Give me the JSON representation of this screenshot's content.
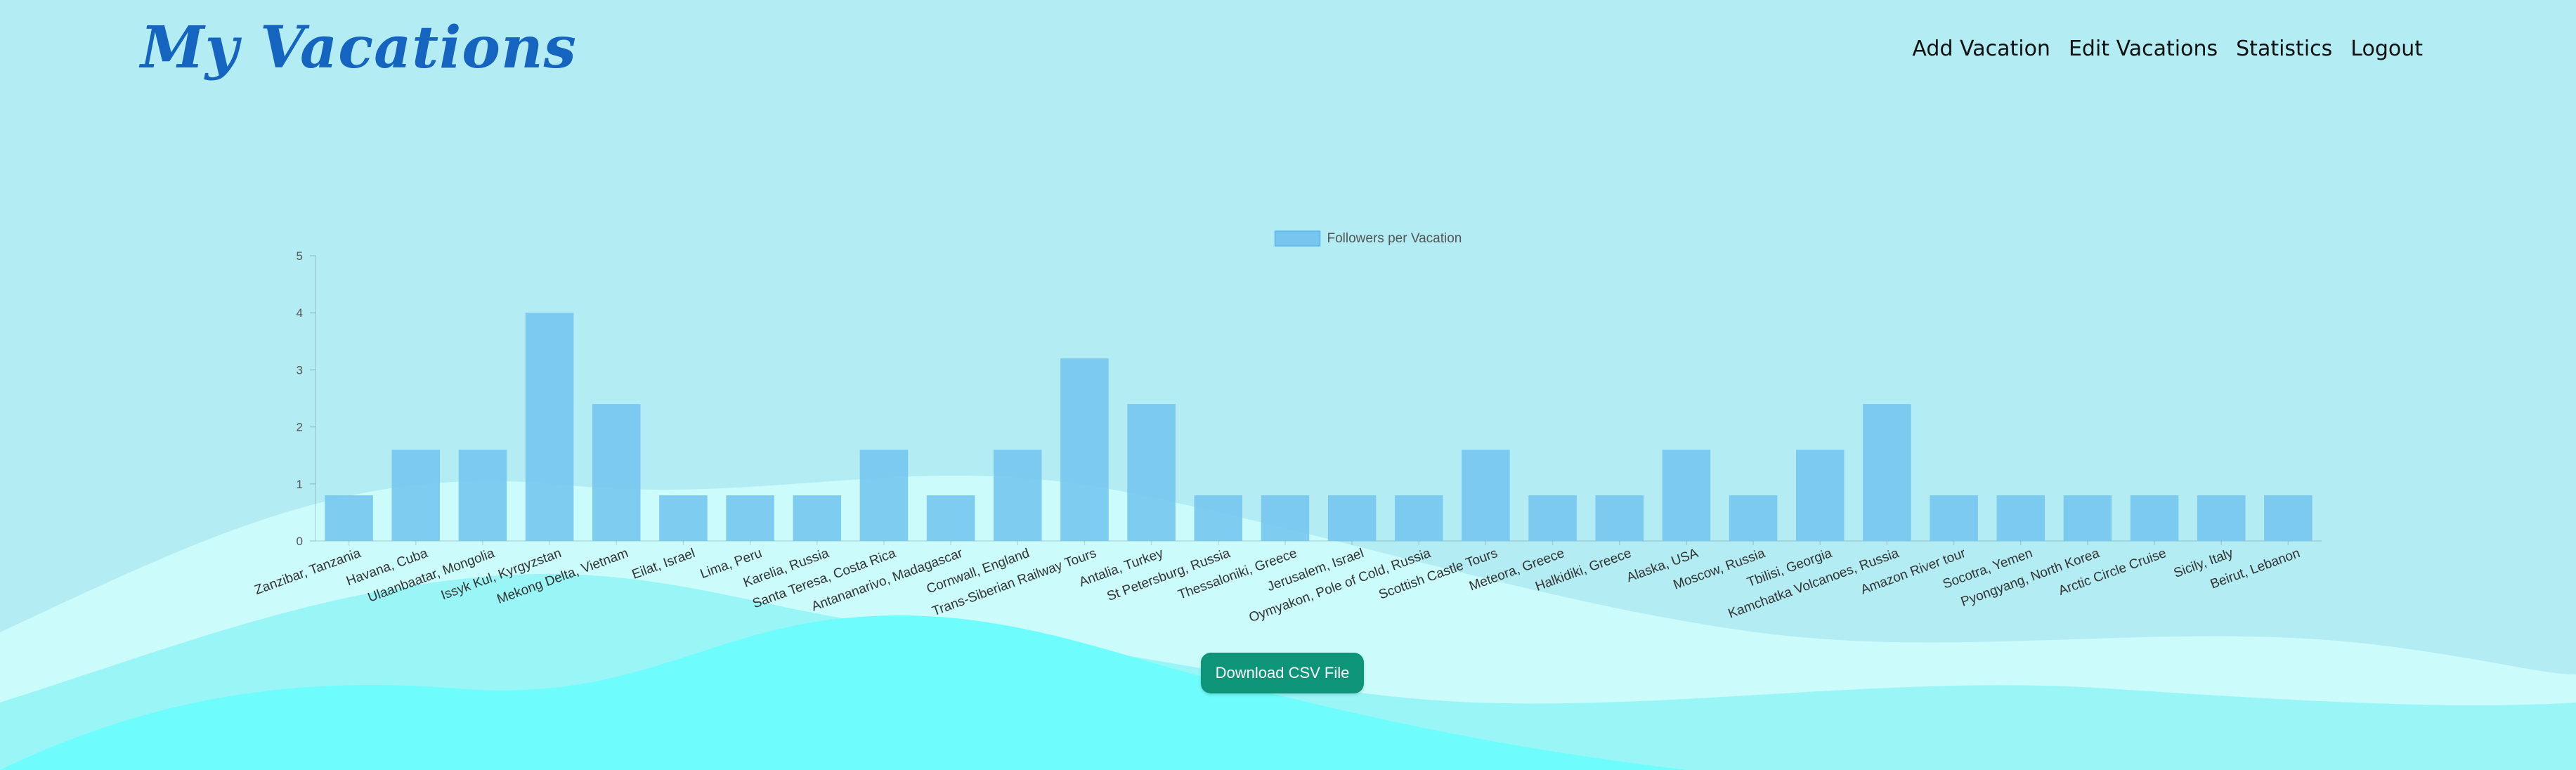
{
  "header": {
    "brand": "My Vacations",
    "nav": [
      "Add Vacation",
      "Edit Vacations",
      "Statistics",
      "Logout"
    ]
  },
  "download_button": "Download CSV File",
  "colors": {
    "background": "#b3ecf2",
    "bar": "#77c6ef",
    "brand": "#1565c0",
    "button": "#0e9479"
  },
  "chart_data": {
    "type": "bar",
    "title": "",
    "xlabel": "",
    "ylabel": "",
    "ylim": [
      0,
      5
    ],
    "yticks": [
      0,
      1,
      2,
      3,
      4,
      5
    ],
    "legend": "top-center",
    "categories": [
      "Zanzibar, Tanzania",
      "Havana, Cuba",
      "Ulaanbaatar, Mongolia",
      "Issyk Kul, Kyrgyzstan",
      "Mekong Delta, Vietnam",
      "Eilat, Israel",
      "Lima, Peru",
      "Karelia, Russia",
      "Santa Teresa, Costa Rica",
      "Antananarivo, Madagascar",
      "Cornwall, England",
      "Trans-Siberian Railway Tours",
      "Antalia, Turkey",
      "St Petersburg, Russia",
      "Thessaloniki, Greece",
      "Jerusalem, Israel",
      "Oymyakon, Pole of Cold, Russia",
      "Scottish Castle Tours",
      "Meteora, Greece",
      "Halkidiki, Greece",
      "Alaska, USA",
      "Moscow, Russia",
      "Tbilisi, Georgia",
      "Kamchatka Volcanoes, Russia",
      "Amazon River tour",
      "Socotra, Yemen",
      "Pyongyang, North Korea",
      "Arctic Circle Cruise",
      "Sicily, Italy",
      "Beirut, Lebanon"
    ],
    "series": [
      {
        "name": "Followers per Vacation",
        "values": [
          0.8,
          1.6,
          1.6,
          4.0,
          2.4,
          0.8,
          0.8,
          0.8,
          1.6,
          0.8,
          1.6,
          3.2,
          2.4,
          0.8,
          0.8,
          0.8,
          0.8,
          1.6,
          0.8,
          0.8,
          1.6,
          0.8,
          1.6,
          2.4,
          0.8,
          0.8,
          0.8,
          0.8,
          0.8,
          0.8
        ]
      }
    ]
  }
}
